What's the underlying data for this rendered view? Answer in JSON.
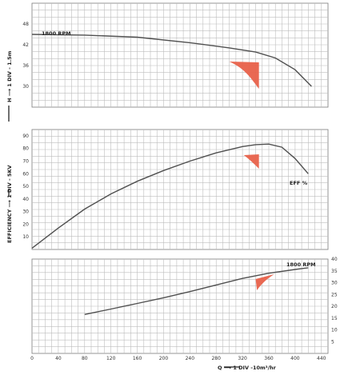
{
  "chart_data": [
    {
      "type": "line",
      "panel": "head",
      "ylabel": "H ⟶ 1 DIV - 1.5m",
      "ylim": [
        24,
        54
      ],
      "yticks": [
        "48",
        "42",
        "36",
        "30"
      ],
      "annotation": "1800 RPM",
      "x": [
        0,
        80,
        160,
        240,
        300,
        340,
        370,
        400,
        425
      ],
      "values": [
        45,
        44.8,
        44.2,
        42.6,
        41.1,
        39.9,
        38.2,
        34.8,
        30.0
      ],
      "zone_color": "#e8614a"
    },
    {
      "type": "line",
      "panel": "efficiency",
      "ylabel": "EFFICIENCY ⟶ 1 DIV - 5KV",
      "ylim": [
        0,
        95
      ],
      "yticks": [
        "90",
        "80",
        "70",
        "60",
        "50",
        "40",
        "30",
        "20",
        "10"
      ],
      "annotation": "EFF %",
      "x": [
        0,
        40,
        80,
        120,
        160,
        200,
        240,
        280,
        320,
        340,
        360,
        380,
        400,
        420
      ],
      "values": [
        1,
        17,
        32,
        44,
        54,
        62.5,
        70,
        76.5,
        81.5,
        83,
        83.5,
        81,
        72,
        60
      ],
      "zone_color": "#e8614a"
    },
    {
      "type": "line",
      "panel": "power",
      "ylim": [
        0,
        40
      ],
      "yticks": [
        "40",
        "35",
        "30",
        "25",
        "20",
        "15",
        "10",
        "5"
      ],
      "annotation": "1800 RPM",
      "categories": [
        "0",
        "40",
        "80",
        "120",
        "160",
        "200",
        "240",
        "280",
        "320",
        "360",
        "400",
        "440"
      ],
      "xlabel": "Q ⟶ 1 DIV -10m³/hr",
      "x": [
        80,
        120,
        160,
        200,
        240,
        280,
        320,
        360,
        400,
        420
      ],
      "values": [
        16.5,
        18.8,
        21.2,
        23.6,
        26.2,
        29.0,
        31.8,
        34.0,
        35.6,
        36.3
      ],
      "zone_color": "#e8614a"
    }
  ]
}
